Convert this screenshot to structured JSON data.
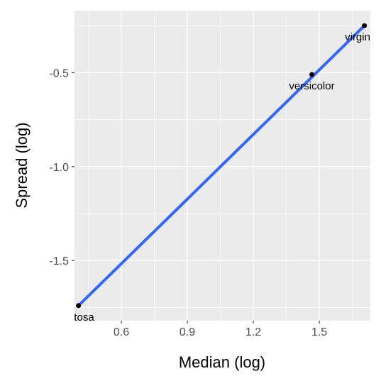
{
  "chart_data": {
    "type": "scatter",
    "title": "",
    "xlabel": "Median (log)",
    "ylabel": "Spread (log)",
    "xlim": [
      0.387,
      1.732
    ],
    "ylim": [
      -1.82,
      -0.17
    ],
    "x_ticks": [
      0.6,
      0.9,
      1.2,
      1.5
    ],
    "x_tick_labels": [
      "0.6",
      "0.9",
      "1.2",
      "1.5"
    ],
    "y_ticks": [
      -1.5,
      -1.0,
      -0.5
    ],
    "y_tick_labels": [
      "-1.5",
      "-1.0",
      "-0.5"
    ],
    "grid": true,
    "legend": "none",
    "points": [
      {
        "x": 0.405,
        "y": -1.74,
        "label": "setosa"
      },
      {
        "x": 1.466,
        "y": -0.51,
        "label": "versicolor"
      },
      {
        "x": 1.705,
        "y": -0.25,
        "label": "virginica"
      }
    ],
    "fit_line": {
      "x": [
        0.405,
        1.705
      ],
      "y": [
        -1.74,
        -0.25
      ],
      "color": "#3366FF"
    },
    "panel_color": "#EBEBEB",
    "grid_color": "#FFFFFF",
    "point_color": "#000000"
  }
}
